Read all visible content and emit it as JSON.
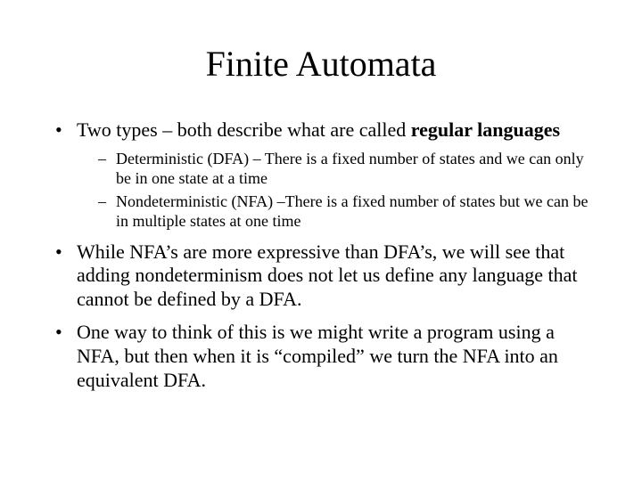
{
  "title": "Finite Automata",
  "bullets": {
    "b1_pre": "Two types – both describe what are called ",
    "b1_bold": "regular languages",
    "b1_sub1": "Deterministic (DFA) – There is a fixed number of states and we can only be in one state at a time",
    "b1_sub2": "Nondeterministic (NFA) –There is a fixed number of states but we can be in multiple states at one time",
    "b2": "While NFA’s are more expressive than DFA’s, we will see that adding nondeterminism does not let us define any language that cannot be defined by a DFA.",
    "b3": "One way to think of this is we might write a program using a NFA, but then when it is “compiled” we turn the NFA into an equivalent DFA."
  },
  "colors": {
    "background": "#ffffff",
    "text": "#000000"
  },
  "typography": {
    "font_family": "Times New Roman",
    "title_fontsize_pt": 30,
    "level1_fontsize_pt": 17,
    "level2_fontsize_pt": 14
  }
}
